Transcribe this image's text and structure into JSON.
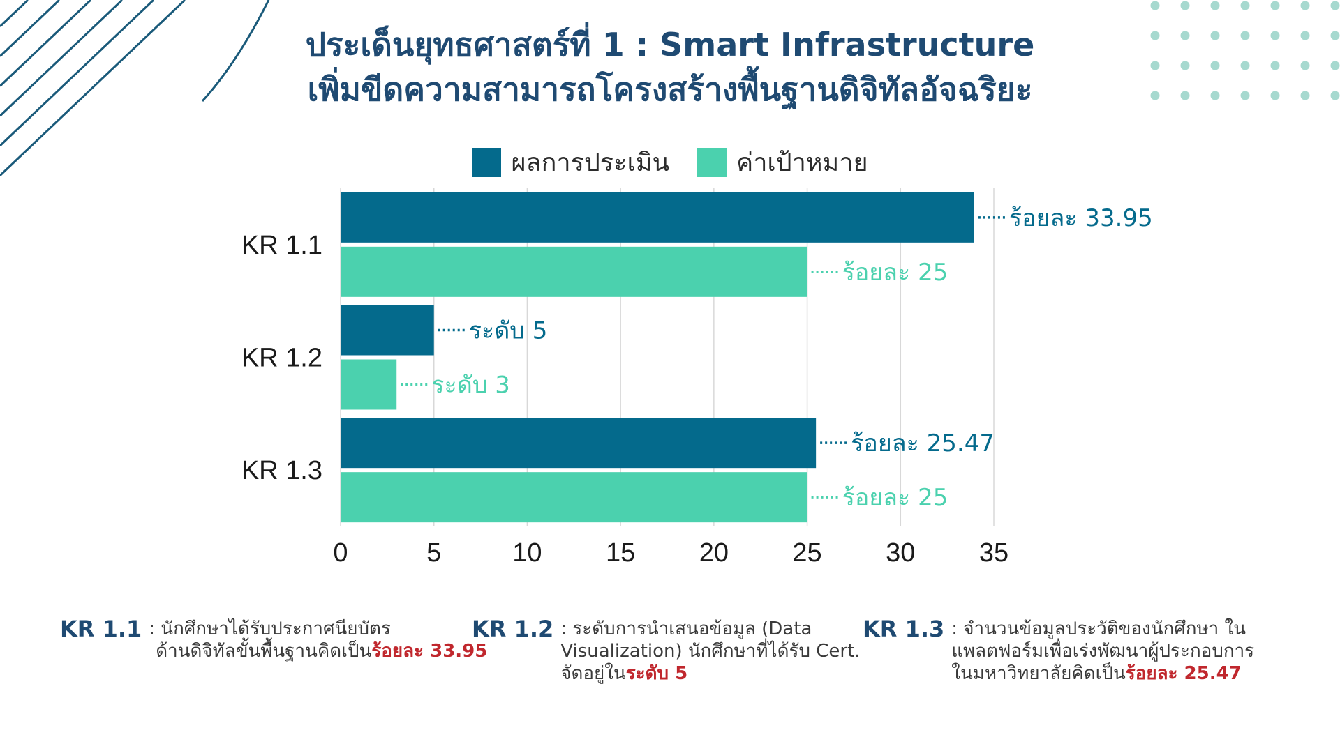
{
  "title_line1": "ประเด็นยุทธศาสตร์ที่ 1 : Smart Infrastructure",
  "title_line2": "เพิ่มขีดความสามารถโครงสร้างพื้นฐานดิจิทัลอัจฉริยะ",
  "colors": {
    "result": "#046a8c",
    "target": "#4bd1ae",
    "title": "#1f4a72",
    "highlight": "#c0272d",
    "decor_dots": "#a6d9cf"
  },
  "chart_data": {
    "type": "bar",
    "orientation": "horizontal",
    "categories": [
      "KR 1.1",
      "KR 1.2",
      "KR 1.3"
    ],
    "series": [
      {
        "name": "ผลการประเมิน",
        "values": [
          33.95,
          5,
          25.47
        ],
        "labels": [
          "ร้อยละ 33.95",
          "ระดับ 5",
          "ร้อยละ 25.47"
        ]
      },
      {
        "name": "ค่าเป้าหมาย",
        "values": [
          25,
          3,
          25
        ],
        "labels": [
          "ร้อยละ 25",
          "ระดับ 3",
          "ร้อยละ 25"
        ]
      }
    ],
    "xlim": [
      0,
      35
    ],
    "xticks": [
      "0",
      "5",
      "10",
      "15",
      "20",
      "25",
      "30",
      "35"
    ],
    "grid": true,
    "legend": "top"
  },
  "notes": [
    {
      "kr": "KR 1.1",
      "line1": ": นักศึกษาได้รับประกาศนียบัตร",
      "line2_pre": "ด้านดิจิทัลขั้นพื้นฐานคิดเป็น",
      "highlight": "ร้อยละ 33.95"
    },
    {
      "kr": "KR 1.2",
      "line1": ": ระดับการนำเสนอข้อมูล (Data",
      "line2": "Visualization) นักศึกษาที่ได้รับ Cert.",
      "line3_pre": "จัดอยู่ใน",
      "highlight": "ระดับ 5"
    },
    {
      "kr": "KR 1.3",
      "line1": ": จำนวนข้อมูลประวัติของนักศึกษา ใน",
      "line2": "แพลตฟอร์มเพื่อเร่งพัฒนาผู้ประกอบการ",
      "line3_pre": "ในมหาวิทยาลัยคิดเป็น",
      "highlight": "ร้อยละ 25.47"
    }
  ]
}
